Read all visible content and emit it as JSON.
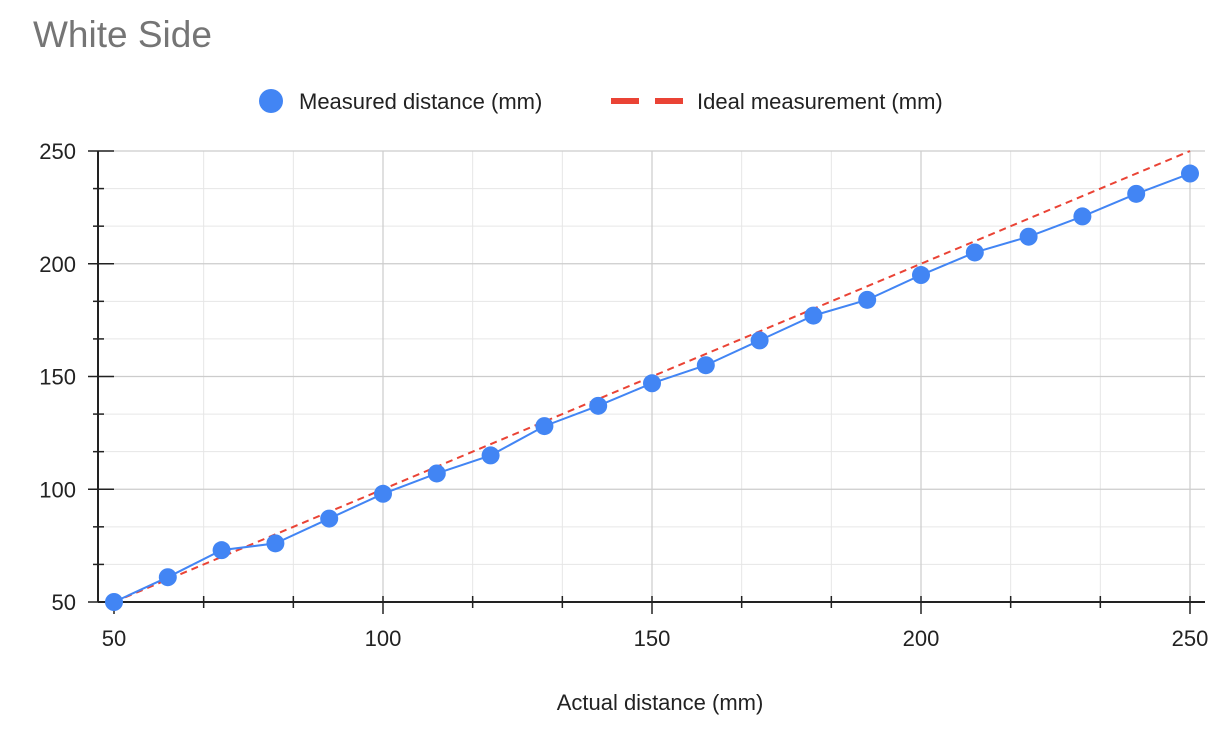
{
  "chart_data": {
    "type": "line",
    "title": "White Side",
    "xlabel": "Actual distance (mm)",
    "ylabel": "",
    "xlim": [
      50,
      250
    ],
    "ylim": [
      50,
      250
    ],
    "xticks": [
      50,
      100,
      150,
      200,
      250
    ],
    "yticks": [
      50,
      100,
      150,
      200,
      250
    ],
    "grid": true,
    "legend_position": "top",
    "series": [
      {
        "name": "Measured distance (mm)",
        "style": "line-with-markers",
        "color": "#4285f4",
        "x": [
          50,
          60,
          70,
          80,
          90,
          100,
          110,
          120,
          130,
          140,
          150,
          160,
          170,
          180,
          190,
          200,
          210,
          220,
          230,
          240,
          250
        ],
        "values": [
          50,
          61,
          73,
          76,
          87,
          98,
          107,
          115,
          128,
          137,
          147,
          155,
          166,
          177,
          184,
          195,
          205,
          212,
          221,
          231,
          240
        ]
      },
      {
        "name": "Ideal measurement (mm)",
        "style": "dashed-line",
        "color": "#ea4335",
        "x": [
          50,
          250
        ],
        "values": [
          50,
          250
        ]
      }
    ]
  }
}
